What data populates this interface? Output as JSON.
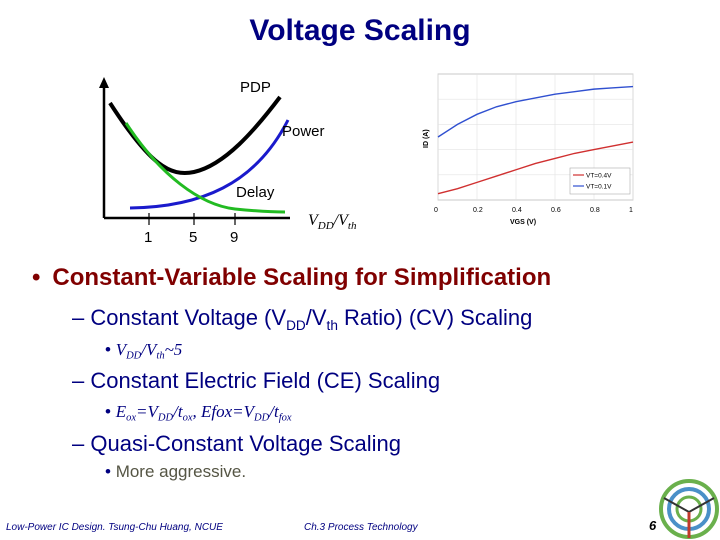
{
  "title": "Voltage Scaling",
  "left_chart": {
    "curve_labels": {
      "pdp": "PDP",
      "power": "Power",
      "delay": "Delay"
    },
    "x_ticks": [
      "1",
      "5",
      "9"
    ],
    "x_label_main": "V",
    "x_label_sub1": "DD",
    "x_label_sep": "/V",
    "x_label_sub2": "th",
    "colors": {
      "pdp": "#000000",
      "power": "#1a1acc",
      "delay": "#22bb22"
    }
  },
  "chart_data": {
    "type": "line",
    "xlabel": "VGS (V)",
    "ylabel": "ID (A)",
    "xlim": [
      0,
      1
    ],
    "x_ticks": [
      "0",
      "0.2",
      "0.4",
      "0.6",
      "0.8",
      "1"
    ],
    "grid": true,
    "legend_position": "bottom-right",
    "series": [
      {
        "name": "VT=0.4V",
        "color": "#d03030",
        "x": [
          0.0,
          0.1,
          0.2,
          0.3,
          0.4,
          0.5,
          0.6,
          0.7,
          0.8,
          0.9,
          1.0
        ],
        "y": [
          0.05,
          0.09,
          0.14,
          0.19,
          0.24,
          0.29,
          0.33,
          0.37,
          0.4,
          0.43,
          0.46
        ]
      },
      {
        "name": "VT=0.1V",
        "color": "#3050d0",
        "x": [
          0.0,
          0.1,
          0.2,
          0.3,
          0.4,
          0.5,
          0.6,
          0.7,
          0.8,
          0.9,
          1.0
        ],
        "y": [
          0.5,
          0.6,
          0.68,
          0.74,
          0.78,
          0.81,
          0.84,
          0.86,
          0.88,
          0.89,
          0.9
        ]
      }
    ]
  },
  "bullets": {
    "main_dot": "•",
    "main": "Constant-Variable Scaling for Simplification",
    "dash": "–",
    "sub_dot": "•",
    "cv": {
      "pre": "Constant Voltage (V",
      "sub1": "DD",
      "mid": "/V",
      "sub2": "th",
      "post": " Ratio) (CV) Scaling"
    },
    "cv_detail": {
      "a": "V",
      "sub1": "DD",
      "b": "/V",
      "sub2": "th",
      "c": "~5"
    },
    "ce": "Constant Electric Field (CE) Scaling",
    "ce_detail": {
      "a": "E",
      "s1": "ox",
      "b": "=V",
      "s2": "DD",
      "c": "/t",
      "s3": "ox",
      "d": ", Efox=V",
      "s4": "DD",
      "e": "/t",
      "s5": "fox"
    },
    "qcv": "Quasi-Constant Voltage Scaling",
    "qcv_detail": "More aggressive."
  },
  "footer": {
    "left": "Low-Power IC Design. Tsung-Chu Huang, NCUE",
    "center": "Ch.3 Process Technology",
    "page": "6"
  }
}
